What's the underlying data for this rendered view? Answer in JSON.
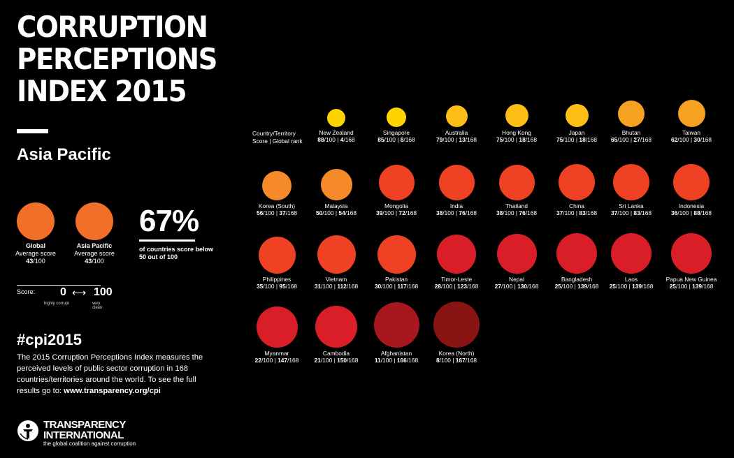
{
  "title_lines": [
    "CORRUPTION",
    "PERCEPTIONS",
    "INDEX 2015"
  ],
  "region": "Asia Pacific",
  "global_avg": {
    "label": "Global",
    "sublabel": "Average score",
    "score": "43",
    "max": "/100",
    "color": "#F26F2A"
  },
  "region_avg": {
    "label": "Asia Pacific",
    "sublabel": "Average score",
    "score": "43",
    "max": "/100",
    "color": "#F26F2A"
  },
  "stat": {
    "value": "67%",
    "text": "of countries score below 50 out of 100"
  },
  "scale": {
    "label": "Score:",
    "low": "0",
    "arrow": "⟷",
    "high": "100",
    "low_desc": "highly corrupt",
    "high_desc": "very clean"
  },
  "hashtag": "#cpi2015",
  "description": "The 2015 Corruption Perceptions Index measures the perceived levels of public sector corruption in 168 countries/territories around the world. To see the full results go to: ",
  "url": "www.transparency.org/cpi",
  "logo": {
    "line1": "TRANSPARENCY",
    "line2": "INTERNATIONAL",
    "tagline": "the global coalition against corruption"
  },
  "header": {
    "line1": "Country/Territory",
    "line2": "Score | Global rank"
  },
  "chart_data": {
    "type": "scatter",
    "title": "CORRUPTION PERCEPTIONS INDEX 2015",
    "subtitle": "Asia Pacific",
    "score_max": 100,
    "rank_total": 168,
    "countries": [
      {
        "name": "New Zealand",
        "score": 88,
        "rank": 4,
        "color": "#FFD300"
      },
      {
        "name": "Singapore",
        "score": 85,
        "rank": 8,
        "color": "#FFD300"
      },
      {
        "name": "Australia",
        "score": 79,
        "rank": 13,
        "color": "#FDBE16"
      },
      {
        "name": "Hong Kong",
        "score": 75,
        "rank": 18,
        "color": "#FDBE16"
      },
      {
        "name": "Japan",
        "score": 75,
        "rank": 18,
        "color": "#FDBE16"
      },
      {
        "name": "Bhutan",
        "score": 65,
        "rank": 27,
        "color": "#F7A123"
      },
      {
        "name": "Taiwan",
        "score": 62,
        "rank": 30,
        "color": "#F7A123"
      },
      {
        "name": "Korea (South)",
        "score": 56,
        "rank": 37,
        "color": "#F68A2B"
      },
      {
        "name": "Malaysia",
        "score": 50,
        "rank": 54,
        "color": "#F68A2B"
      },
      {
        "name": "Mongolia",
        "score": 39,
        "rank": 72,
        "color": "#EF4124"
      },
      {
        "name": "India",
        "score": 38,
        "rank": 76,
        "color": "#EF4124"
      },
      {
        "name": "Thailand",
        "score": 38,
        "rank": 76,
        "color": "#EF4124"
      },
      {
        "name": "China",
        "score": 37,
        "rank": 83,
        "color": "#EF4124"
      },
      {
        "name": "Sri Lanka",
        "score": 37,
        "rank": 83,
        "color": "#EF4124"
      },
      {
        "name": "Indonesia",
        "score": 36,
        "rank": 88,
        "color": "#EF4124"
      },
      {
        "name": "Philippines",
        "score": 35,
        "rank": 95,
        "color": "#EF4124"
      },
      {
        "name": "Vietnam",
        "score": 31,
        "rank": 112,
        "color": "#EF4124"
      },
      {
        "name": "Pakistan",
        "score": 30,
        "rank": 117,
        "color": "#EF4124"
      },
      {
        "name": "Timor-Leste",
        "score": 28,
        "rank": 123,
        "color": "#DA1E28"
      },
      {
        "name": "Nepal",
        "score": 27,
        "rank": 130,
        "color": "#DA1E28"
      },
      {
        "name": "Bangladesh",
        "score": 25,
        "rank": 139,
        "color": "#DA1E28"
      },
      {
        "name": "Laos",
        "score": 25,
        "rank": 139,
        "color": "#DA1E28"
      },
      {
        "name": "Papua New Guinea",
        "score": 25,
        "rank": 139,
        "color": "#DA1E28"
      },
      {
        "name": "Myanmar",
        "score": 22,
        "rank": 147,
        "color": "#DA1E28"
      },
      {
        "name": "Cambodia",
        "score": 21,
        "rank": 150,
        "color": "#DA1E28"
      },
      {
        "name": "Afghanistan",
        "score": 11,
        "rank": 166,
        "color": "#A8161E"
      },
      {
        "name": "Korea (North)",
        "score": 8,
        "rank": 167,
        "color": "#8A1414"
      }
    ]
  }
}
